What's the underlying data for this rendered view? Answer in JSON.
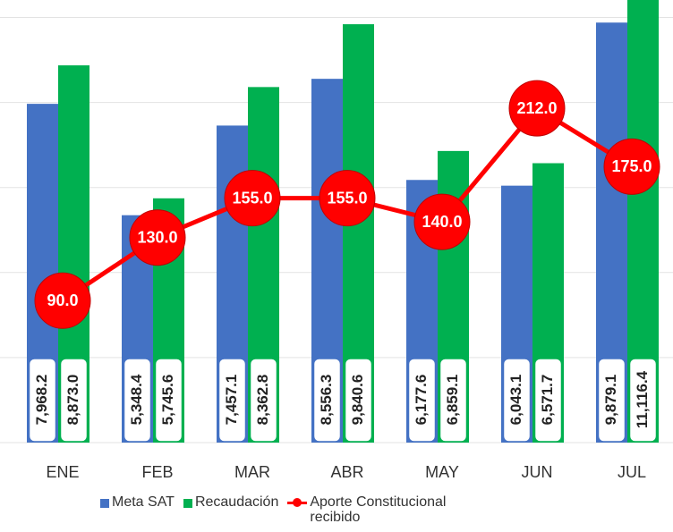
{
  "chart_data": {
    "type": "bar",
    "categories": [
      "ENE",
      "FEB",
      "MAR",
      "ABR",
      "MAY",
      "JUN",
      "JUL"
    ],
    "series": [
      {
        "name": "Meta SAT",
        "color": "#4472c4",
        "values": [
          7968.2,
          5348.4,
          7457.1,
          8556.3,
          6177.6,
          6043.1,
          9879.1
        ],
        "value_labels": [
          "7,968.2",
          "5,348.4",
          "7,457.1",
          "8,556.3",
          "6,177.6",
          "6,043.1",
          "9,879.1"
        ]
      },
      {
        "name": "Recaudación",
        "color": "#00b050",
        "values": [
          8873.0,
          5745.6,
          8362.8,
          9840.6,
          6859.1,
          6571.7,
          11116.4
        ],
        "value_labels": [
          "8,873.0",
          "5,745.6",
          "8,362.8",
          "9,840.6",
          "6,859.1",
          "6,571.7",
          "11,116.4"
        ]
      },
      {
        "name": "Aporte Constitucional recibido",
        "type": "line",
        "axis": "y2",
        "color": "#ff0000",
        "values": [
          90,
          130,
          155,
          155,
          140,
          212,
          175
        ],
        "value_labels": [
          "90.0",
          "130.0",
          "155.0",
          "155.0",
          "140.0",
          "212.0",
          "175.0"
        ]
      }
    ],
    "ylim": [
      0,
      10200
    ],
    "yticks": [
      0,
      2000,
      4000,
      6000,
      8000,
      10000
    ],
    "y2lim": [
      0,
      275
    ],
    "grid": true,
    "legend": "bottom"
  }
}
